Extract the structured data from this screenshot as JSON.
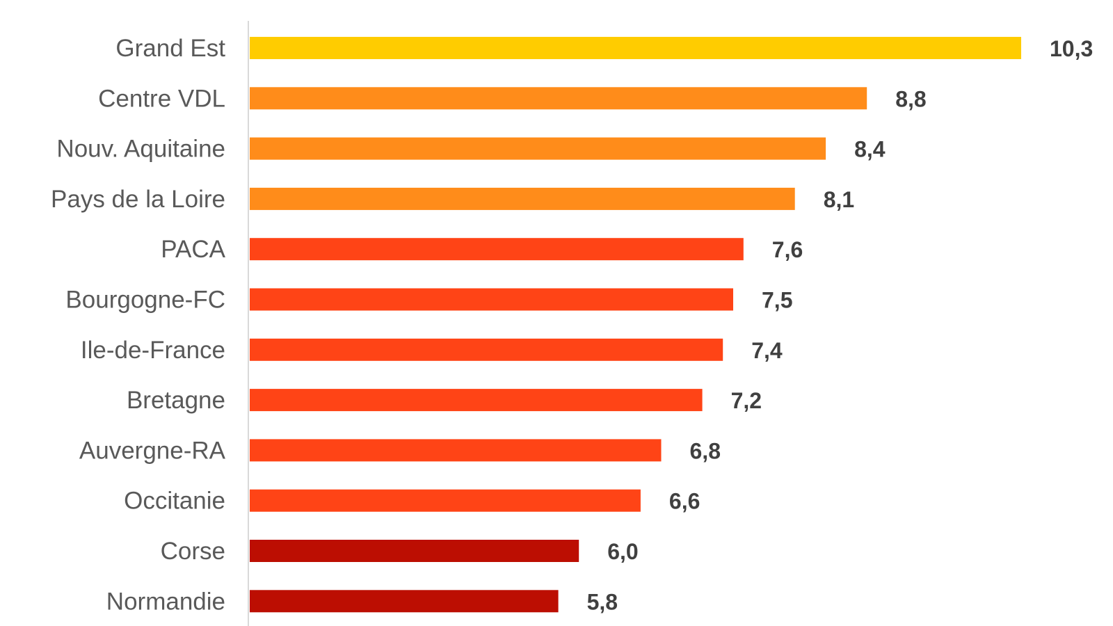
{
  "chart_data": {
    "type": "bar",
    "orientation": "horizontal",
    "title": "",
    "xlabel": "",
    "ylabel": "",
    "categories": [
      "Grand Est",
      "Centre VDL",
      "Nouv. Aquitaine",
      "Pays de la Loire",
      "PACA",
      "Bourgogne-FC",
      "Ile-de-France",
      "Bretagne",
      "Auvergne-RA",
      "Occitanie",
      "Corse",
      "Normandie"
    ],
    "values": [
      10.3,
      8.8,
      8.4,
      8.1,
      7.6,
      7.5,
      7.4,
      7.2,
      6.8,
      6.6,
      6.0,
      5.8
    ],
    "value_labels": [
      "10,3",
      "8,8",
      "8,4",
      "8,1",
      "7,6",
      "7,5",
      "7,4",
      "7,2",
      "6,8",
      "6,6",
      "6,0",
      "5,8"
    ],
    "bar_colors": [
      "#FFCC00",
      "#FF8C1A",
      "#FF8C1A",
      "#FF8C1A",
      "#FF4416",
      "#FF4416",
      "#FF4416",
      "#FF4416",
      "#FF4416",
      "#FF4416",
      "#BC0E02",
      "#BC0E02"
    ],
    "xlim": [
      2.8,
      10.3
    ],
    "grid": false,
    "legend": "none"
  }
}
